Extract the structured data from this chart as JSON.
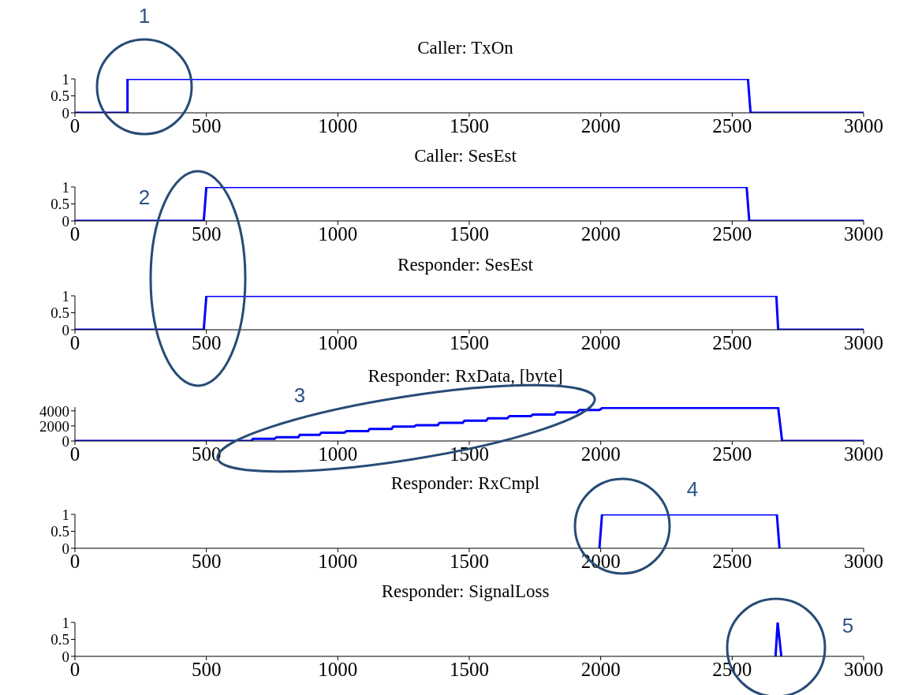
{
  "chart_data": [
    {
      "type": "line",
      "title": "Caller: TxOn",
      "x": [
        0,
        200,
        200,
        2560,
        2570,
        3000
      ],
      "values": [
        0,
        0,
        1,
        1,
        0,
        0
      ],
      "color": "#0000ff",
      "xlim": [
        0,
        3000
      ],
      "xticks": [
        0,
        500,
        1000,
        1500,
        2000,
        2500,
        3000
      ],
      "ylim": [
        0,
        1
      ],
      "yticks": [
        0,
        0.5,
        1
      ],
      "annotations": [
        "1"
      ]
    },
    {
      "type": "line",
      "title": "Caller: SesEst",
      "x": [
        0,
        490,
        500,
        2555,
        2565,
        3000
      ],
      "values": [
        0,
        0,
        1,
        1,
        0,
        0
      ],
      "color": "#0000ff",
      "xlim": [
        0,
        3000
      ],
      "xticks": [
        0,
        500,
        1000,
        1500,
        2000,
        2500,
        3000
      ],
      "ylim": [
        0,
        1
      ],
      "yticks": [
        0,
        0.5,
        1
      ],
      "annotations": [
        "2"
      ]
    },
    {
      "type": "line",
      "title": "Responder: SesEst",
      "x": [
        0,
        490,
        500,
        2668,
        2675,
        3000
      ],
      "values": [
        0,
        0,
        1,
        1,
        0,
        0
      ],
      "color": "#0000ff",
      "xlim": [
        0,
        3000
      ],
      "xticks": [
        0,
        500,
        1000,
        1500,
        2000,
        2500,
        3000
      ],
      "ylim": [
        0,
        1
      ],
      "yticks": [
        0,
        0.5,
        1
      ]
    },
    {
      "type": "line",
      "title": "Responder: RxData, [byte]",
      "x": [
        0,
        670,
        678,
        760,
        766,
        850,
        855,
        930,
        937,
        1025,
        1032,
        1115,
        1121,
        1205,
        1210,
        1290,
        1298,
        1380,
        1387,
        1475,
        1482,
        1565,
        1571,
        1645,
        1653,
        1735,
        1741,
        1825,
        1830,
        1910,
        1919,
        1995,
        2007,
        2675,
        2690,
        3000
      ],
      "values": [
        0,
        0,
        300,
        300,
        500,
        500,
        800,
        800,
        1100,
        1100,
        1300,
        1300,
        1600,
        1600,
        1900,
        1900,
        2100,
        2100,
        2400,
        2400,
        2700,
        2700,
        3000,
        3000,
        3300,
        3300,
        3500,
        3500,
        3800,
        3800,
        4100,
        4100,
        4400,
        4400,
        0,
        0
      ],
      "color": "#0000ff",
      "xlim": [
        0,
        3000
      ],
      "xticks": [
        0,
        500,
        1000,
        1500,
        2000,
        2500,
        3000
      ],
      "ylim": [
        0,
        4500
      ],
      "yticks": [
        0,
        2000,
        4000
      ],
      "annotations": [
        "3"
      ]
    },
    {
      "type": "line",
      "title": "Responder: RxCmpl",
      "x": [
        1995,
        2005,
        2670,
        2680
      ],
      "values": [
        0,
        1,
        1,
        0
      ],
      "color": "#0000ff",
      "xlim": [
        0,
        3000
      ],
      "xticks": [
        0,
        500,
        1000,
        1500,
        2000,
        2500,
        3000
      ],
      "ylim": [
        0,
        1
      ],
      "yticks": [
        0,
        0.5,
        1
      ],
      "annotations": [
        "4"
      ]
    },
    {
      "type": "line",
      "title": "Responder: SignalLoss",
      "x": [
        2665,
        2673,
        2687
      ],
      "values": [
        0,
        1,
        0
      ],
      "color": "#0000ff",
      "xlim": [
        0,
        3000
      ],
      "xticks": [
        0,
        500,
        1000,
        1500,
        2000,
        2500,
        3000
      ],
      "ylim": [
        0,
        1
      ],
      "yticks": [
        0,
        0.5,
        1
      ],
      "annotations": [
        "5"
      ]
    }
  ]
}
